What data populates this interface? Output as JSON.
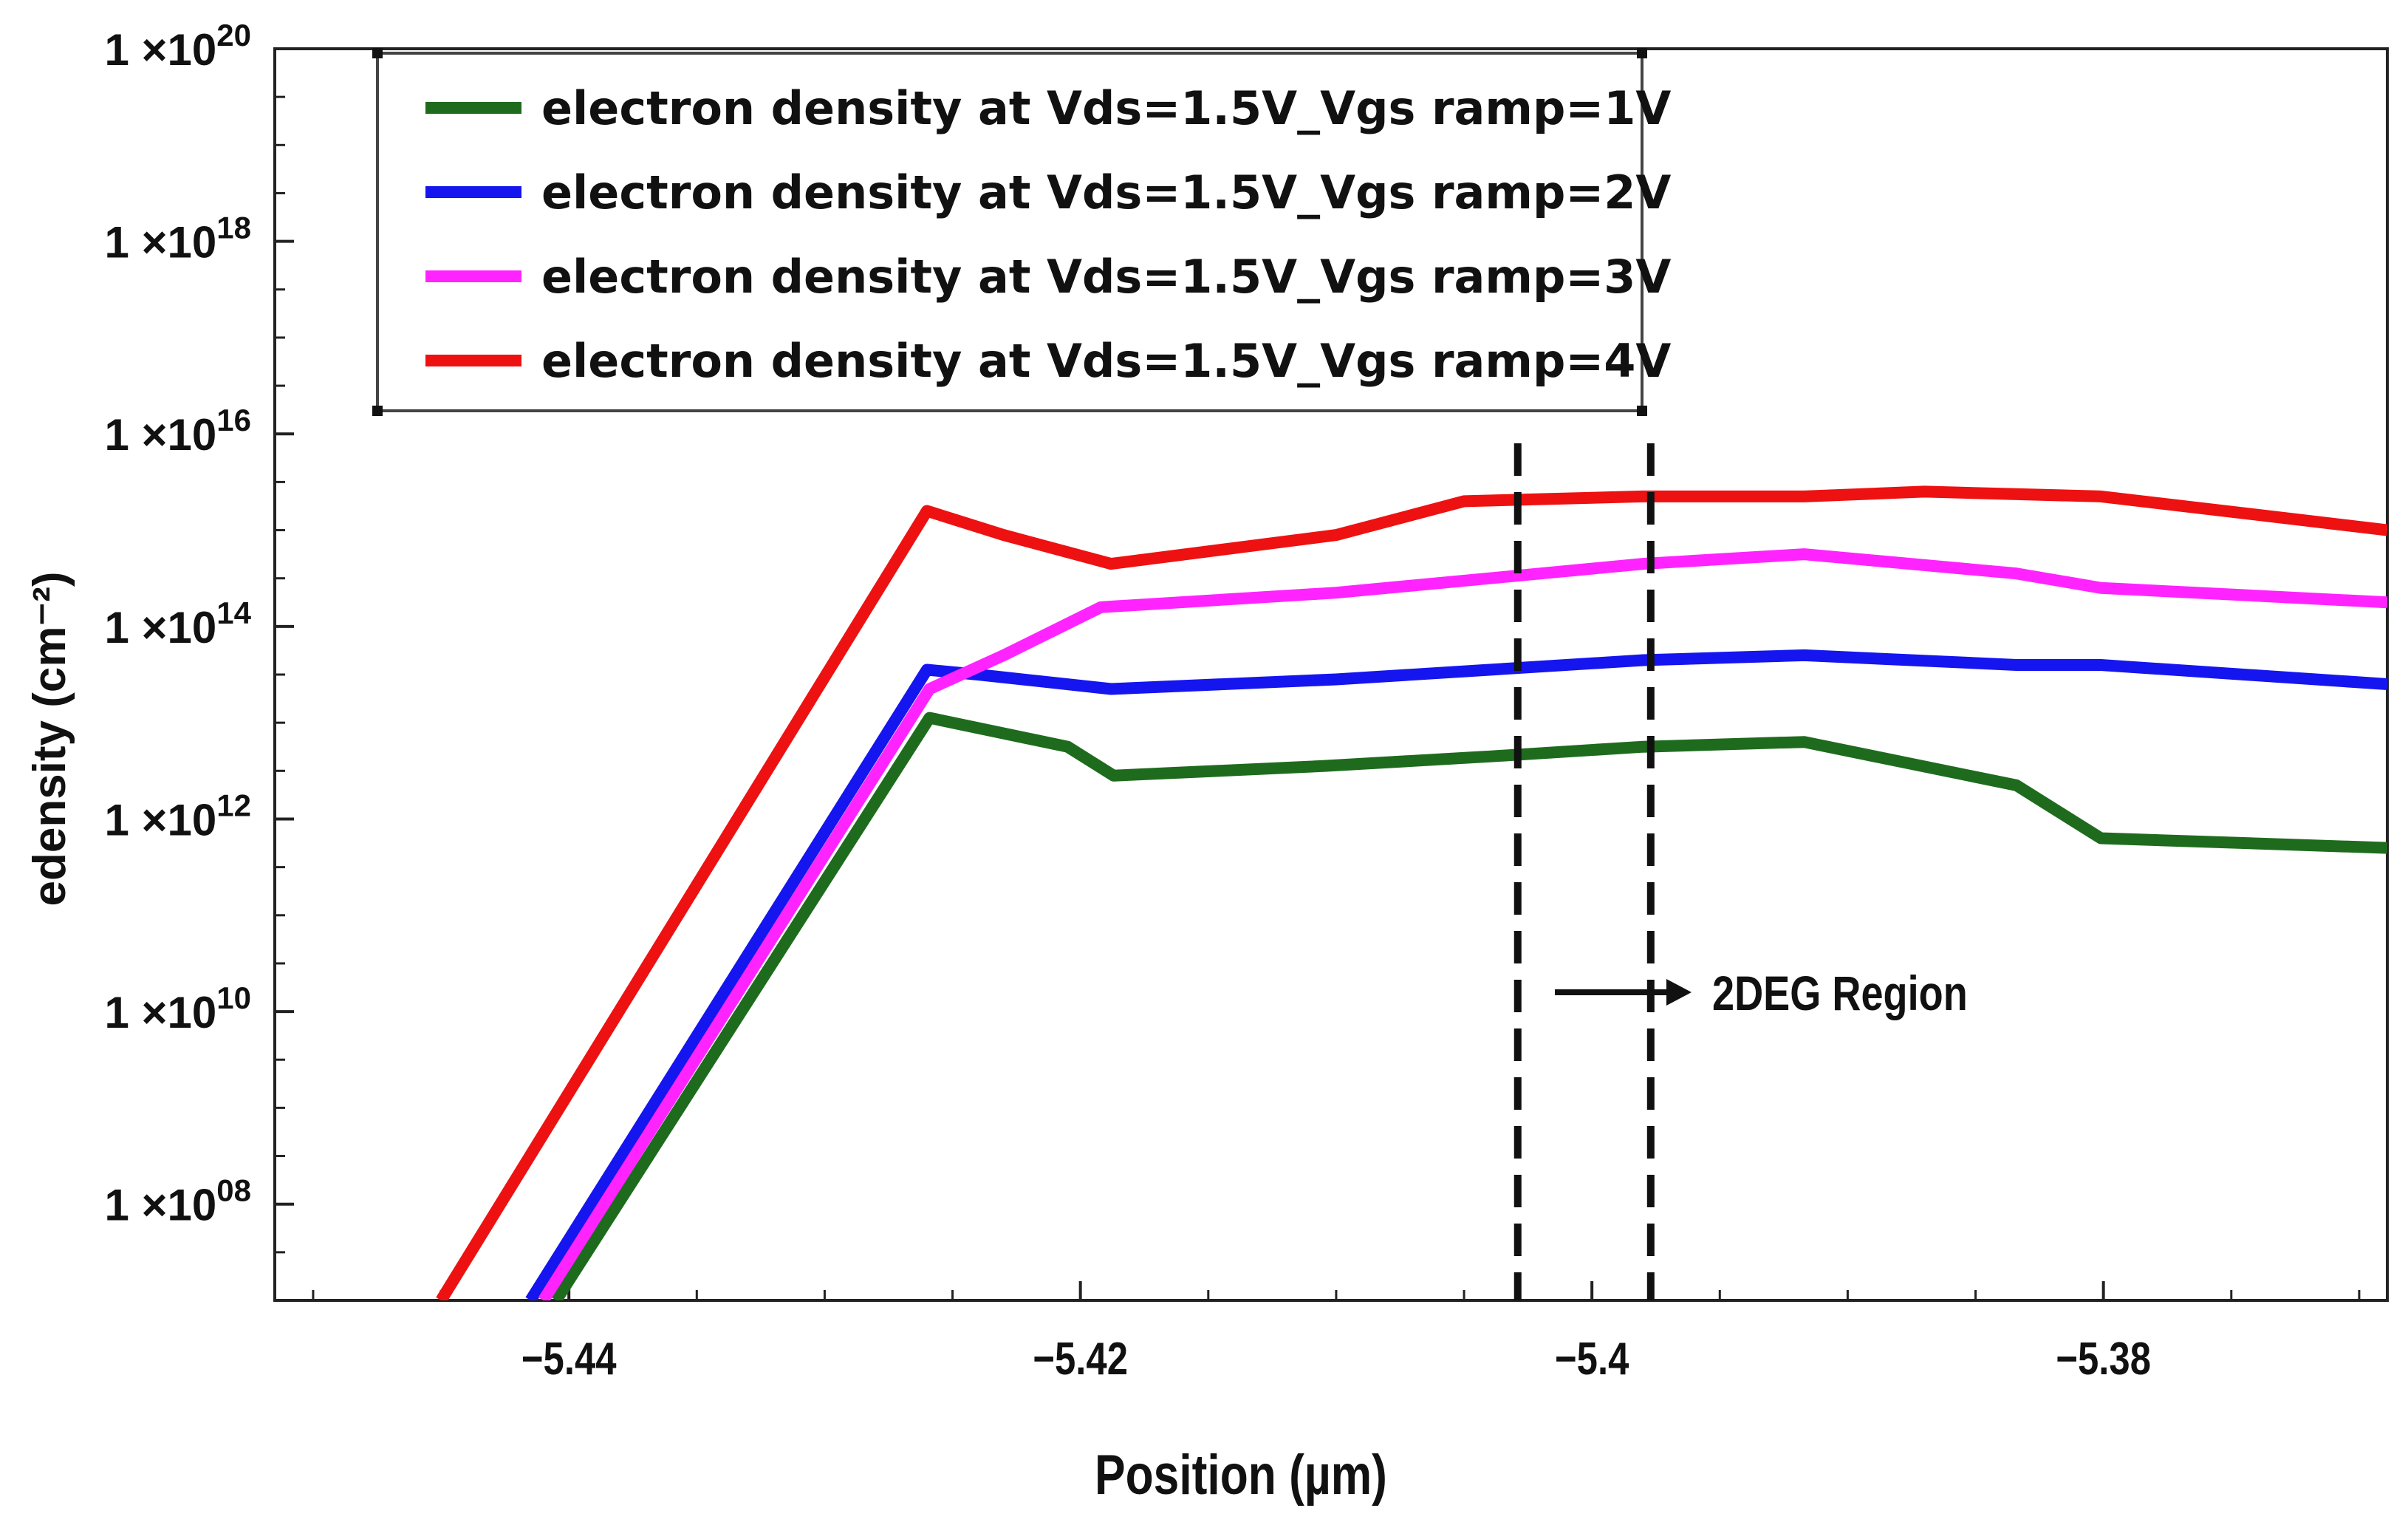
{
  "chart_data": {
    "type": "line",
    "xlabel": "Position (µm)",
    "ylabel": "edensity (cm⁻²)",
    "y_scale": "log",
    "xlim": [
      -5.4515,
      -5.3689
    ],
    "ylim_exp": [
      7,
      20
    ],
    "x_ticks": [
      {
        "value": -5.44,
        "label": "−5.44"
      },
      {
        "value": -5.42,
        "label": "−5.42"
      },
      {
        "value": -5.4,
        "label": "−5.4"
      },
      {
        "value": -5.38,
        "label": "−5.38"
      }
    ],
    "y_ticks": [
      {
        "exp": 20,
        "base": "1 ×10",
        "sup": "20"
      },
      {
        "exp": 18,
        "base": "1 ×10",
        "sup": "18"
      },
      {
        "exp": 16,
        "base": "1 ×10",
        "sup": "16"
      },
      {
        "exp": 14,
        "base": "1 ×10",
        "sup": "14"
      },
      {
        "exp": 12,
        "base": "1 ×10",
        "sup": "12"
      },
      {
        "exp": 10,
        "base": "1 ×10",
        "sup": "10"
      },
      {
        "exp": 8,
        "base": "1 ×10",
        "sup": "08"
      }
    ],
    "grid": false,
    "legend_position": "top-left",
    "series": [
      {
        "name": "electron density at Vds=1.5V_Vgs ramp=1V",
        "color": "#1e6b1e",
        "points": [
          [
            -5.4405,
            7.0
          ],
          [
            -5.4259,
            13.05
          ],
          [
            -5.4205,
            12.75
          ],
          [
            -5.4187,
            12.45
          ],
          [
            -5.4105,
            12.55
          ],
          [
            -5.404,
            12.65
          ],
          [
            -5.398,
            12.75
          ],
          [
            -5.3917,
            12.8
          ],
          [
            -5.3834,
            12.35
          ],
          [
            -5.3801,
            11.8
          ],
          [
            -5.3689,
            11.7
          ]
        ]
      },
      {
        "name": "electron density at Vds=1.5V_Vgs ramp=2V",
        "color": "#1515f0",
        "points": [
          [
            -5.4415,
            7.0
          ],
          [
            -5.426,
            13.55
          ],
          [
            -5.424,
            13.5
          ],
          [
            -5.4188,
            13.35
          ],
          [
            -5.41,
            13.45
          ],
          [
            -5.404,
            13.55
          ],
          [
            -5.398,
            13.65
          ],
          [
            -5.3917,
            13.7
          ],
          [
            -5.3834,
            13.6
          ],
          [
            -5.3801,
            13.6
          ],
          [
            -5.3689,
            13.4
          ]
        ]
      },
      {
        "name": "electron density at Vds=1.5V_Vgs ramp=3V",
        "color": "#ff24ff",
        "points": [
          [
            -5.441,
            7.0
          ],
          [
            -5.4259,
            13.35
          ],
          [
            -5.423,
            13.7
          ],
          [
            -5.4192,
            14.2
          ],
          [
            -5.41,
            14.35
          ],
          [
            -5.404,
            14.5
          ],
          [
            -5.398,
            14.65
          ],
          [
            -5.3917,
            14.75
          ],
          [
            -5.3834,
            14.55
          ],
          [
            -5.3801,
            14.4
          ],
          [
            -5.3689,
            14.25
          ]
        ]
      },
      {
        "name": "electron density at Vds=1.5V_Vgs ramp=4V",
        "color": "#ee1111",
        "points": [
          [
            -5.445,
            7.0
          ],
          [
            -5.426,
            15.2
          ],
          [
            -5.423,
            14.95
          ],
          [
            -5.4188,
            14.65
          ],
          [
            -5.41,
            14.95
          ],
          [
            -5.405,
            15.3
          ],
          [
            -5.398,
            15.35
          ],
          [
            -5.3917,
            15.35
          ],
          [
            -5.387,
            15.4
          ],
          [
            -5.3801,
            15.35
          ],
          [
            -5.3689,
            15.0
          ]
        ]
      }
    ],
    "vlines": [
      -5.4029,
      -5.3977
    ],
    "annotation": {
      "text": "2DEG Region",
      "x": -5.3955,
      "exp": 10.2
    }
  }
}
